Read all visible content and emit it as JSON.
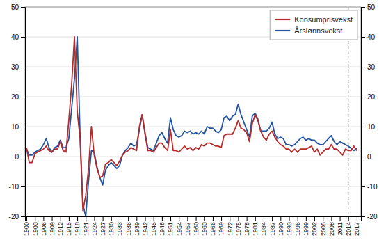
{
  "chart_data": {
    "type": "line",
    "x": [
      1900,
      1901,
      1902,
      1903,
      1904,
      1905,
      1906,
      1907,
      1908,
      1909,
      1910,
      1911,
      1912,
      1913,
      1914,
      1915,
      1916,
      1917,
      1918,
      1919,
      1920,
      1921,
      1922,
      1923,
      1924,
      1925,
      1926,
      1927,
      1928,
      1929,
      1930,
      1931,
      1932,
      1933,
      1934,
      1935,
      1936,
      1937,
      1938,
      1939,
      1940,
      1941,
      1942,
      1943,
      1944,
      1945,
      1946,
      1947,
      1948,
      1949,
      1950,
      1951,
      1952,
      1953,
      1954,
      1955,
      1956,
      1957,
      1958,
      1959,
      1960,
      1961,
      1962,
      1963,
      1964,
      1965,
      1966,
      1967,
      1968,
      1969,
      1970,
      1971,
      1972,
      1973,
      1974,
      1975,
      1976,
      1977,
      1978,
      1979,
      1980,
      1981,
      1982,
      1983,
      1984,
      1985,
      1986,
      1987,
      1988,
      1989,
      1990,
      1991,
      1992,
      1993,
      1994,
      1995,
      1996,
      1997,
      1998,
      1999,
      2000,
      2001,
      2002,
      2003,
      2004,
      2005,
      2006,
      2007,
      2008,
      2009,
      2010,
      2011,
      2012,
      2013,
      2014,
      2015,
      2016,
      2017
    ],
    "series": [
      {
        "name": "Konsumprisvekst",
        "color": "#b52a2a",
        "values": [
          3.0,
          -2.0,
          -2.0,
          1.0,
          1.5,
          2.0,
          2.5,
          3.5,
          2.0,
          1.5,
          2.5,
          2.5,
          5.0,
          2.0,
          1.5,
          12.0,
          24.0,
          40.0,
          15.0,
          6.0,
          -18.0,
          -13.0,
          -4.0,
          10.0,
          0.5,
          -4.0,
          -7.0,
          -6.5,
          -2.5,
          -2.0,
          -1.0,
          -2.0,
          -3.0,
          -1.5,
          0.5,
          1.5,
          2.0,
          3.0,
          2.5,
          2.0,
          10.0,
          14.0,
          7.5,
          2.0,
          2.0,
          1.5,
          3.0,
          4.5,
          4.5,
          3.0,
          2.0,
          9.0,
          2.0,
          2.0,
          1.5,
          2.5,
          3.5,
          2.5,
          3.0,
          2.0,
          3.0,
          2.5,
          4.0,
          3.5,
          4.5,
          4.5,
          4.0,
          3.5,
          3.5,
          3.0,
          7.0,
          7.5,
          7.5,
          7.5,
          9.5,
          12.0,
          9.5,
          9.0,
          8.0,
          5.0,
          11.0,
          14.0,
          12.0,
          8.5,
          6.5,
          5.5,
          7.5,
          8.5,
          6.5,
          5.0,
          4.0,
          3.5,
          2.5,
          2.5,
          1.5,
          2.5,
          1.5,
          2.5,
          2.5,
          2.5,
          3.0,
          3.5,
          1.5,
          2.5,
          0.5,
          1.5,
          2.5,
          2.5,
          4.0,
          2.5,
          2.5,
          1.5,
          0.5,
          2.5,
          2.0,
          2.0,
          3.5,
          2.0
        ]
      },
      {
        "name": "Årslønnsvekst",
        "color": "#2455a0",
        "values": [
          2.5,
          0.5,
          0.5,
          1.5,
          2.0,
          2.5,
          4.0,
          6.0,
          3.0,
          1.5,
          3.0,
          3.5,
          5.5,
          3.0,
          3.0,
          6.0,
          16.0,
          26.0,
          40.0,
          7.0,
          -16.0,
          -20.0,
          -8.0,
          2.0,
          1.5,
          -3.5,
          -7.0,
          -9.5,
          -4.5,
          -3.0,
          -2.0,
          -3.0,
          -4.0,
          -3.0,
          0.5,
          2.0,
          3.0,
          4.5,
          3.5,
          4.0,
          9.0,
          14.0,
          8.0,
          3.0,
          2.5,
          2.0,
          4.5,
          7.0,
          8.0,
          6.0,
          4.5,
          13.0,
          9.0,
          7.0,
          6.5,
          7.0,
          8.5,
          8.0,
          8.5,
          7.5,
          8.0,
          7.5,
          8.5,
          7.5,
          10.0,
          9.5,
          9.5,
          8.5,
          8.0,
          9.0,
          13.0,
          13.5,
          12.0,
          13.5,
          14.0,
          17.5,
          14.0,
          11.5,
          9.0,
          6.5,
          13.5,
          14.5,
          12.5,
          8.5,
          8.5,
          8.5,
          9.5,
          11.5,
          7.5,
          6.0,
          6.5,
          6.0,
          4.0,
          4.0,
          3.5,
          4.0,
          5.0,
          6.0,
          6.5,
          5.5,
          6.0,
          5.5,
          5.5,
          4.5,
          4.0,
          4.0,
          5.0,
          6.0,
          7.0,
          5.0,
          4.0,
          5.0,
          4.5,
          4.0,
          3.5,
          2.8,
          2.0,
          2.8
        ]
      }
    ],
    "xlim": [
      1899.5,
      2018.5
    ],
    "xticks": [
      1900,
      1903,
      1906,
      1909,
      1912,
      1915,
      1918,
      1921,
      1924,
      1927,
      1930,
      1933,
      1936,
      1939,
      1942,
      1945,
      1948,
      1951,
      1954,
      1957,
      1960,
      1963,
      1966,
      1969,
      1972,
      1975,
      1978,
      1981,
      1984,
      1987,
      1990,
      1993,
      1996,
      1999,
      2002,
      2005,
      2008,
      2011,
      2014,
      2017
    ],
    "ylim": [
      -20,
      50
    ],
    "yticks": [
      -20,
      -10,
      0,
      10,
      20,
      30,
      40,
      50
    ],
    "y2lim": [
      -20,
      50
    ],
    "y2ticks": [
      -20,
      -10,
      0,
      10,
      20,
      30,
      40,
      50
    ],
    "vlines": [
      2014
    ],
    "grid": true,
    "legend": "upper right"
  }
}
